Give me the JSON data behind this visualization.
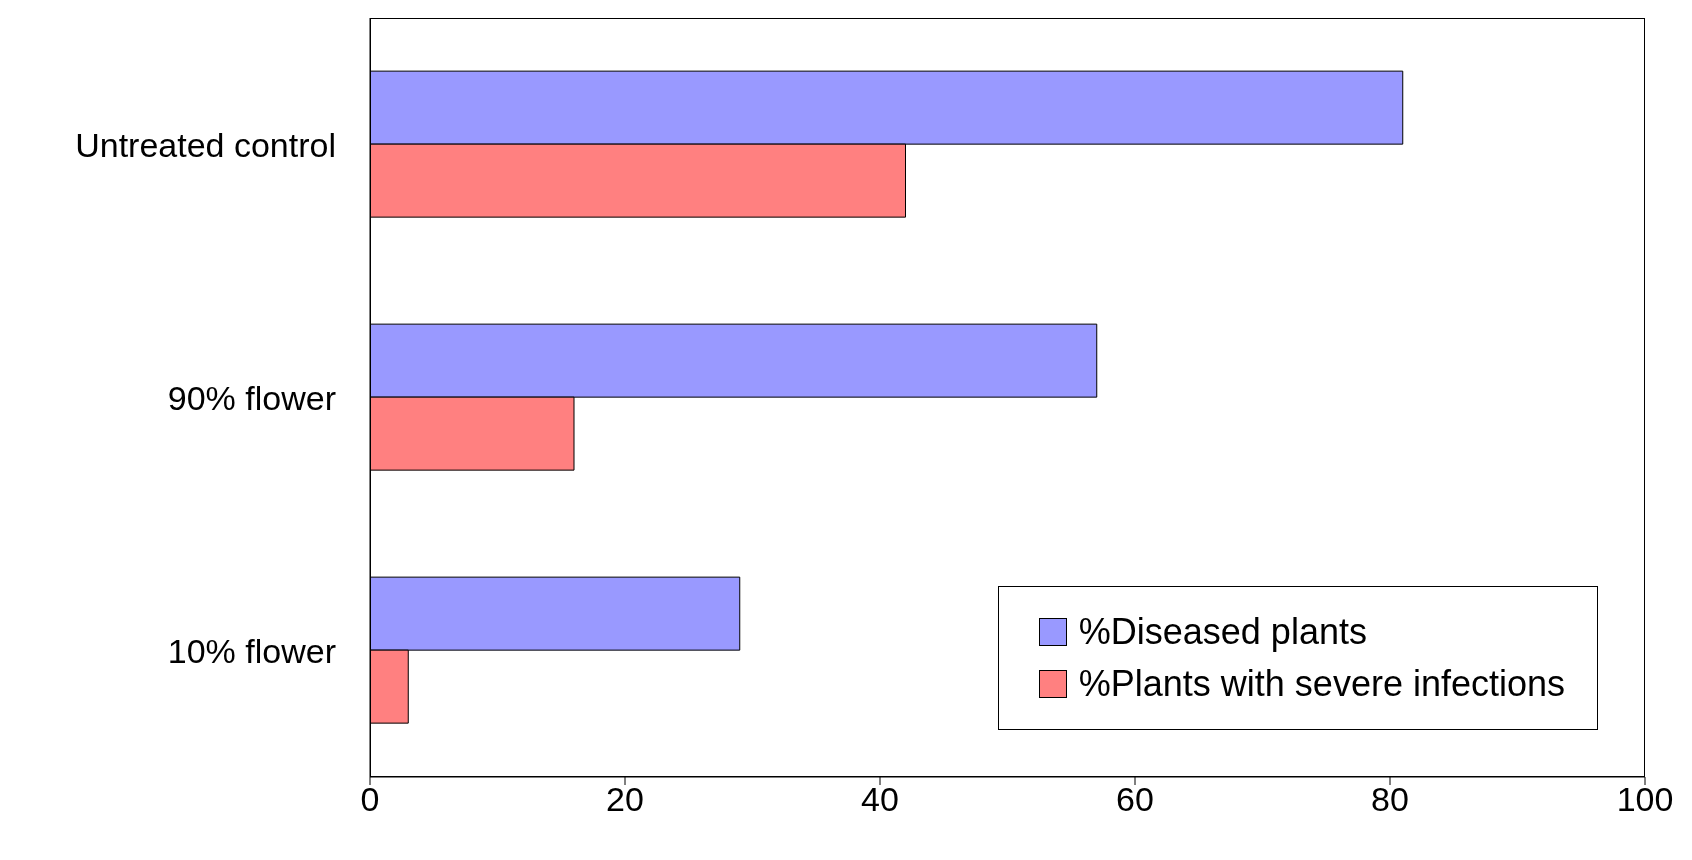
{
  "chart_data": {
    "type": "bar",
    "orientation": "horizontal",
    "categories": [
      "Untreated control",
      "90% flower",
      "10% flower"
    ],
    "series": [
      {
        "name": "%Diseased plants",
        "color": "#9999ff",
        "values": [
          81,
          57,
          29
        ]
      },
      {
        "name": "%Plants with severe infections",
        "color": "#ff8080",
        "values": [
          42,
          16,
          3
        ]
      }
    ],
    "xlim": [
      0,
      100
    ],
    "xticks": [
      0,
      20,
      40,
      60,
      80,
      100
    ],
    "grid": false,
    "legend": "bottom right"
  }
}
